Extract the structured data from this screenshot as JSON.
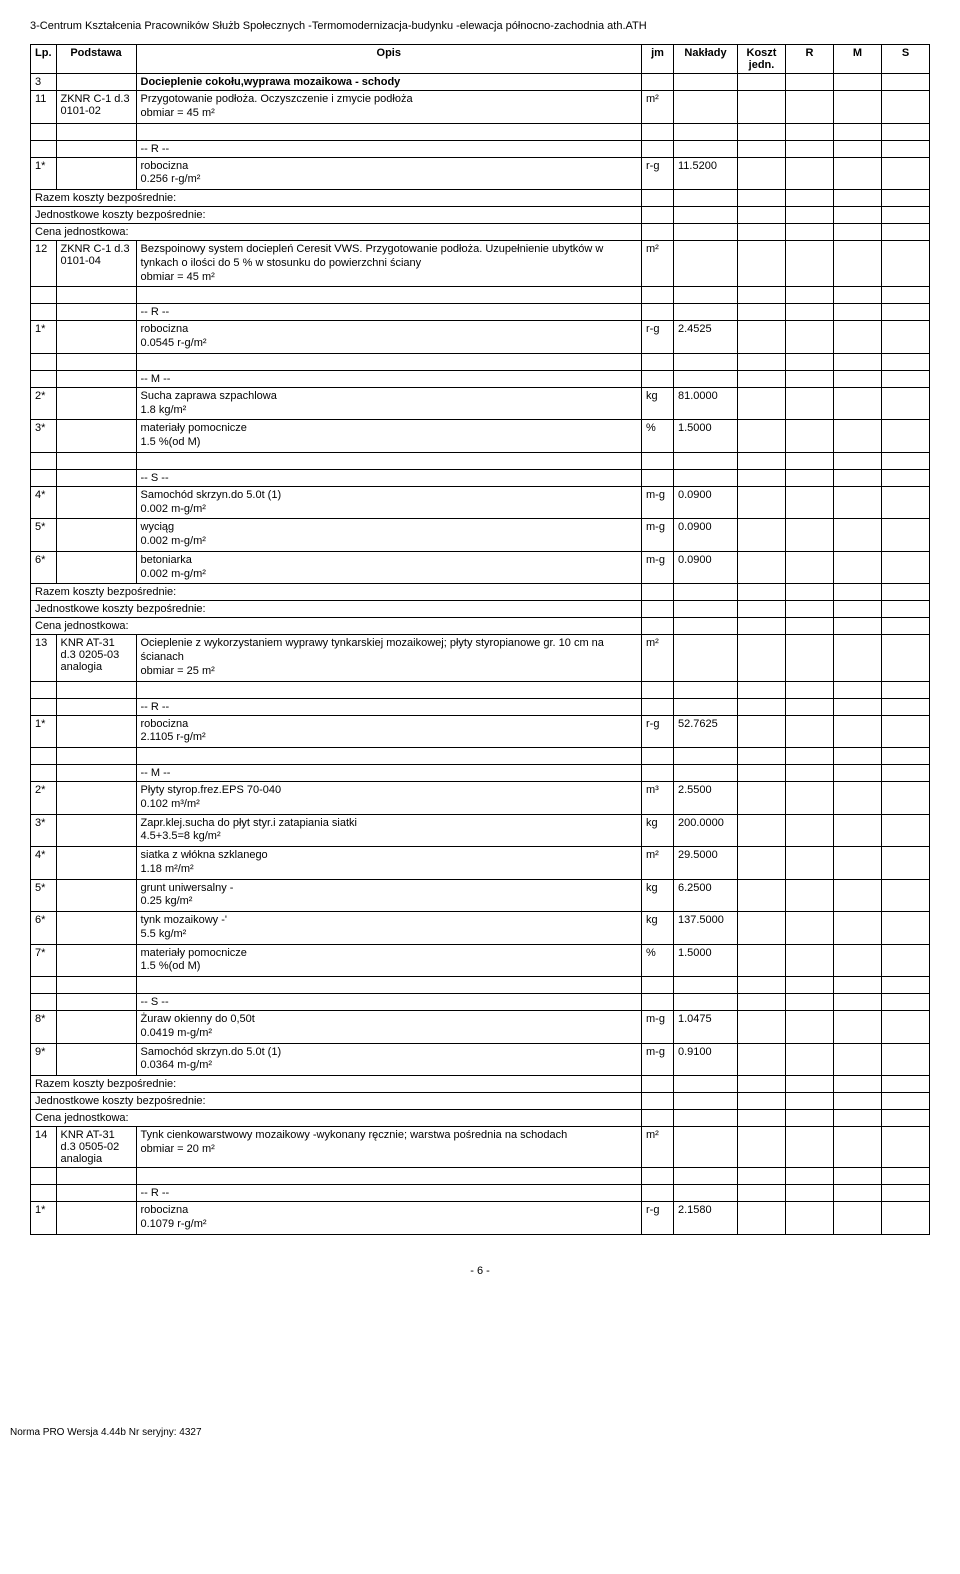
{
  "doc_title": "3-Centrum Kształcenia Pracowników Służb Społecznych -Termomodernizacja-budynku -elewacja północno-zachodnia ath.ATH",
  "headers": {
    "lp": "Lp.",
    "podstawa": "Podstawa",
    "opis": "Opis",
    "jm": "jm",
    "naklady": "Nakłady",
    "koszt": "Koszt jedn.",
    "r": "R",
    "m": "M",
    "s": "S"
  },
  "section": {
    "num": "3",
    "title": "Docieplenie cokołu,wyprawa mozaikowa - schody"
  },
  "razem_label": "Razem koszty bezpośrednie:",
  "jedn_label": "Jednostkowe koszty bezpośrednie:",
  "cena_label": "Cena jednostkowa:",
  "r_label": "-- R --",
  "m_label": "-- M --",
  "s_label": "-- S --",
  "rows": [
    {
      "lp": "11",
      "pod": "ZKNR C-1 d.3 0101-02",
      "opis": "Przygotowanie podłoża. Oczyszczenie i zmycie podłoża\nobmiar  = 45 m²",
      "jm": "m²"
    },
    {
      "lp": "1*",
      "opis": "robocizna\n0.256 r-g/m²",
      "jm": "r-g",
      "nak": "11.5200"
    },
    {
      "lp": "12",
      "pod": "ZKNR C-1 d.3 0101-04",
      "opis": "Bezspoinowy system dociepleń Ceresit VWS. Przygotowanie podłoża. Uzupełnienie ubytków w tynkach o ilości do 5 % w stosunku do powierzchni ściany\nobmiar  = 45 m²",
      "jm": "m²"
    },
    {
      "lp": "1*",
      "opis": "robocizna\n0.0545 r-g/m²",
      "jm": "r-g",
      "nak": "2.4525"
    },
    {
      "lp": "2*",
      "opis": "Sucha zaprawa szpachlowa\n1.8 kg/m²",
      "jm": "kg",
      "nak": "81.0000"
    },
    {
      "lp": "3*",
      "opis": "materiały pomocnicze\n1.5 %(od M)",
      "jm": "%",
      "nak": "1.5000"
    },
    {
      "lp": "4*",
      "opis": "Samochód skrzyn.do 5.0t (1)\n0.002 m-g/m²",
      "jm": "m-g",
      "nak": "0.0900"
    },
    {
      "lp": "5*",
      "opis": "wyciąg\n0.002 m-g/m²",
      "jm": "m-g",
      "nak": "0.0900"
    },
    {
      "lp": "6*",
      "opis": "betoniarka\n0.002 m-g/m²",
      "jm": "m-g",
      "nak": "0.0900"
    },
    {
      "lp": "13",
      "pod": "KNR AT-31 d.3 0205-03 analogia",
      "opis": "Ocieplenie z wykorzystaniem wyprawy tynkarskiej mozaikowej; płyty styropianowe gr. 10 cm na ścianach\nobmiar  = 25 m²",
      "jm": "m²"
    },
    {
      "lp": "1*",
      "opis": "robocizna\n2.1105 r-g/m²",
      "jm": "r-g",
      "nak": "52.7625"
    },
    {
      "lp": "2*",
      "opis": "Płyty styrop.frez.EPS 70-040\n0.102 m³/m²",
      "jm": "m³",
      "nak": "2.5500"
    },
    {
      "lp": "3*",
      "opis": "Zapr.klej.sucha do płyt styr.i zatapiania siatki\n4.5+3.5=8 kg/m²",
      "jm": "kg",
      "nak": "200.0000"
    },
    {
      "lp": "4*",
      "opis": "siatka  z włókna szklanego\n1.18 m²/m²",
      "jm": "m²",
      "nak": "29.5000"
    },
    {
      "lp": "5*",
      "opis": "grunt uniwersalny -\n0.25 kg/m²",
      "jm": "kg",
      "nak": "6.2500"
    },
    {
      "lp": "6*",
      "opis": "tynk mozaikowy -'\n5.5 kg/m²",
      "jm": "kg",
      "nak": "137.5000"
    },
    {
      "lp": "7*",
      "opis": "materiały pomocnicze\n1.5 %(od M)",
      "jm": "%",
      "nak": "1.5000"
    },
    {
      "lp": "8*",
      "opis": "Żuraw okienny do 0,50t\n0.0419 m-g/m²",
      "jm": "m-g",
      "nak": "1.0475"
    },
    {
      "lp": "9*",
      "opis": "Samochód skrzyn.do 5.0t (1)\n0.0364 m-g/m²",
      "jm": "m-g",
      "nak": "0.9100"
    },
    {
      "lp": "14",
      "pod": "KNR AT-31 d.3 0505-02 analogia",
      "opis": "Tynk cienkowarstwowy mozaikowy -wykonany ręcznie; warstwa pośrednia na schodach\nobmiar  = 20 m²",
      "jm": "m²"
    },
    {
      "lp": "1*",
      "opis": "robocizna\n0.1079 r-g/m²",
      "jm": "r-g",
      "nak": "2.1580"
    }
  ],
  "page_footer": "- 6 -",
  "norma_footer": "Norma PRO Wersja 4.44b Nr seryjny: 4327"
}
